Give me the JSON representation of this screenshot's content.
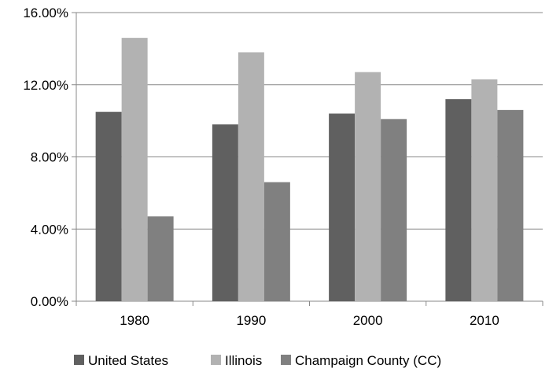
{
  "chart_data": {
    "type": "bar",
    "categories": [
      "1980",
      "1990",
      "2000",
      "2010"
    ],
    "series": [
      {
        "name": "United States",
        "values": [
          10.5,
          9.8,
          10.4,
          11.2
        ],
        "color": "#606060"
      },
      {
        "name": "Illinois",
        "values": [
          14.6,
          13.8,
          12.7,
          12.3
        ],
        "color": "#b2b2b2"
      },
      {
        "name": "Champaign County (CC)",
        "values": [
          4.7,
          6.6,
          10.1,
          10.6
        ],
        "color": "#808080"
      }
    ],
    "ylim": [
      0,
      16
    ],
    "y_ticks": [
      0,
      4,
      8,
      12,
      16
    ],
    "y_tick_labels": [
      "0.00%",
      "4.00%",
      "8.00%",
      "12.00%",
      "16.00%"
    ],
    "grid": "horizontal",
    "legend_position": "bottom",
    "axis_color": "#888888",
    "grid_color": "#888888"
  }
}
